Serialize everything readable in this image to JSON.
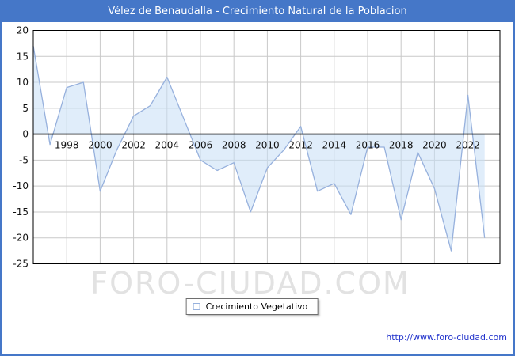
{
  "window": {
    "title": "Vélez de Benaudalla - Crecimiento Natural de la Poblacion",
    "title_bar_color": "#4577c8",
    "frame_color": "#4577c8"
  },
  "watermark": "FORO-CIUDAD.COM",
  "legend": {
    "label": "Crecimiento Vegetativo",
    "marker_color": "#97b1dd"
  },
  "footer": {
    "link": "http://www.foro-ciudad.com"
  },
  "chart_data": {
    "type": "area",
    "title": "Vélez de Benaudalla - Crecimiento Natural de la Poblacion",
    "xlabel": "",
    "ylabel": "",
    "x": [
      1996,
      1997,
      1998,
      1999,
      2000,
      2001,
      2002,
      2003,
      2004,
      2005,
      2006,
      2007,
      2008,
      2009,
      2010,
      2011,
      2012,
      2013,
      2014,
      2015,
      2016,
      2017,
      2018,
      2019,
      2020,
      2021,
      2022,
      2023
    ],
    "series": [
      {
        "name": "Crecimiento Vegetativo",
        "values": [
          17,
          -2,
          9,
          10,
          -11,
          -3,
          3.5,
          5.5,
          11,
          3,
          -5,
          -7,
          -5.5,
          -15,
          -6.5,
          -3,
          1.5,
          -11,
          -9.5,
          -15.5,
          -2.5,
          -2.5,
          -16.5,
          -3.5,
          -10.5,
          -22.5,
          7.5,
          -20
        ]
      }
    ],
    "ylim": [
      -25,
      20
    ],
    "y_ticks": [
      20,
      15,
      10,
      5,
      0,
      -5,
      -10,
      -15,
      -20,
      -25
    ],
    "x_tick_labels": [
      1998,
      2000,
      2002,
      2004,
      2006,
      2008,
      2010,
      2012,
      2014,
      2016,
      2018,
      2020,
      2022
    ],
    "grid": true,
    "legend_position": "bottom-center",
    "line_color": "#97b1dd",
    "fill_color": "rgba(198,222,246,0.55)",
    "grid_color": "#c9c9c9"
  }
}
